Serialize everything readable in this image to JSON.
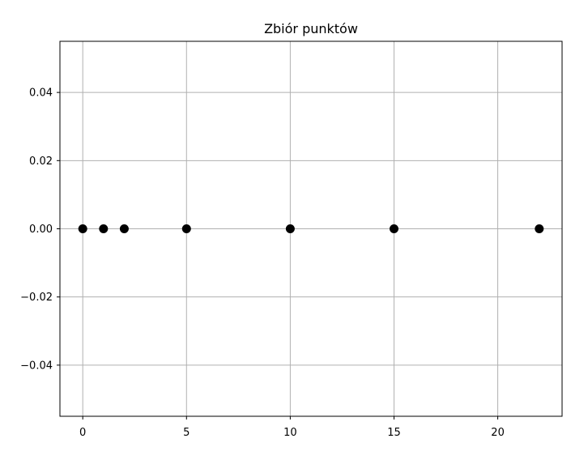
{
  "chart_data": {
    "type": "scatter",
    "title": "Zbiór punktów",
    "xlabel": "",
    "ylabel": "",
    "xlim": [
      -1.1,
      23.1
    ],
    "ylim": [
      -0.055,
      0.055
    ],
    "x_ticks": [
      0,
      5,
      10,
      15,
      20
    ],
    "x_tick_labels": [
      "0",
      "5",
      "10",
      "15",
      "20"
    ],
    "y_ticks": [
      -0.04,
      -0.02,
      0.0,
      0.02,
      0.04
    ],
    "y_tick_labels": [
      "−0.04",
      "−0.02",
      "0.00",
      "0.02",
      "0.04"
    ],
    "grid": true,
    "legend": false,
    "series": [
      {
        "points": [
          {
            "x": 0,
            "y": 0
          },
          {
            "x": 1,
            "y": 0
          },
          {
            "x": 2,
            "y": 0
          },
          {
            "x": 5,
            "y": 0
          },
          {
            "x": 10,
            "y": 0
          },
          {
            "x": 15,
            "y": 0
          },
          {
            "x": 22,
            "y": 0
          }
        ],
        "color": "#000000"
      }
    ]
  },
  "colors": {
    "grid": "#b0b0b0",
    "axes": "#000000",
    "marker": "#000000"
  }
}
